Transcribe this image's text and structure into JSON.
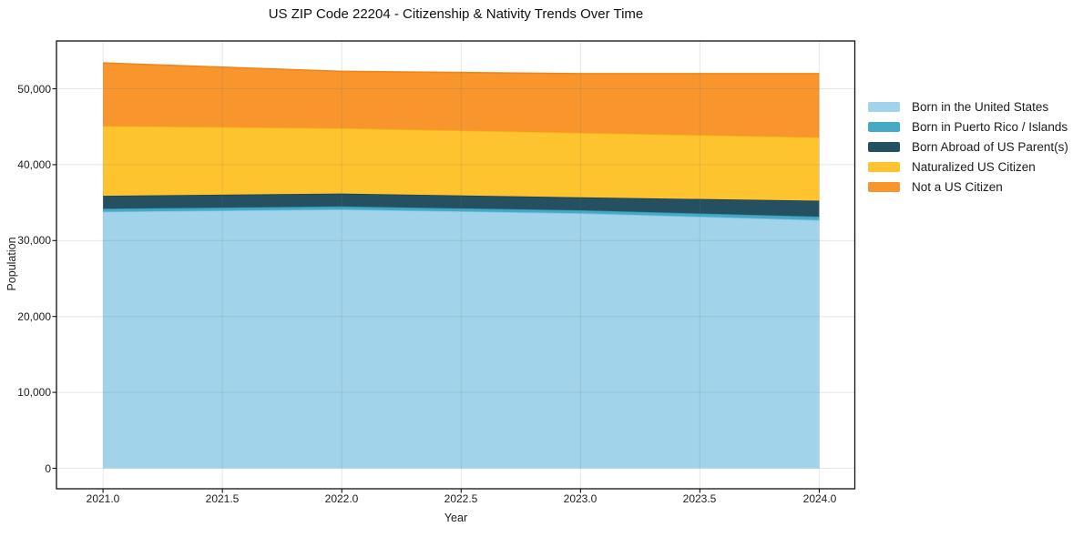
{
  "figure": {
    "title": "US ZIP Code 22204 - Citizenship & Nativity Trends Over Time"
  },
  "chart_data": {
    "type": "area",
    "stacked": true,
    "title": "US ZIP Code 22204 - Citizenship & Nativity Trends Over Time",
    "xlabel": "Year",
    "ylabel": "Population",
    "x": [
      2021,
      2022,
      2023,
      2024
    ],
    "series": [
      {
        "name": "Born in the United States",
        "values": [
          33800,
          34100,
          33600,
          32700
        ],
        "color": "#a1d3eb",
        "edge_color": "#86c3e2"
      },
      {
        "name": "Born in Puerto Rico / Islands",
        "values": [
          400,
          400,
          400,
          450
        ],
        "color": "#46aac6",
        "edge_color": "#3595b2"
      },
      {
        "name": "Born Abroad of US Parent(s)",
        "values": [
          1700,
          1700,
          1700,
          2100
        ],
        "color": "#255062",
        "edge_color": "#1d4152"
      },
      {
        "name": "Naturalized US Citizen",
        "values": [
          9200,
          8600,
          8500,
          8350
        ],
        "color": "#fdc430",
        "edge_color": "#f4b512"
      },
      {
        "name": "Not a US Citizen",
        "values": [
          8300,
          7500,
          7800,
          8400
        ],
        "color": "#f8952c",
        "edge_color": "#ef861a"
      }
    ],
    "stacked_totals": [
      53400,
      52300,
      52000,
      52000
    ],
    "xlim": [
      2020.805,
      2024.149
    ],
    "ylim": [
      -2700,
      56300
    ],
    "xticks": [
      2021.0,
      2021.5,
      2022.0,
      2022.5,
      2023.0,
      2023.5,
      2024.0
    ],
    "xtick_labels": [
      "2021.0",
      "2021.5",
      "2022.0",
      "2022.5",
      "2023.0",
      "2023.5",
      "2024.0"
    ],
    "yticks": [
      0,
      10000,
      20000,
      30000,
      40000,
      50000
    ],
    "ytick_labels": [
      "0",
      "10,000",
      "20,000",
      "30,000",
      "40,000",
      "50,000"
    ],
    "grid": true,
    "legend": {
      "position": "right-center",
      "frame": false
    },
    "colors": {
      "spine": "#111111",
      "grid": "#777777",
      "background": "#ffffff",
      "text": "#1c1c1c"
    }
  }
}
